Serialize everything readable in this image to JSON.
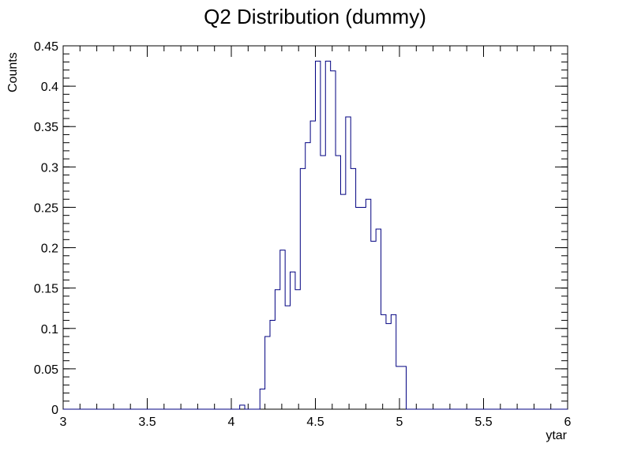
{
  "chart_data": {
    "type": "histogram",
    "title": "Q2 Distribution (dummy)",
    "xlabel": "ytar",
    "ylabel": "Counts",
    "xlim": [
      3,
      6
    ],
    "ylim": [
      0,
      0.45
    ],
    "grid": false,
    "legend": "none",
    "line_color": "#000080",
    "xticks": [
      "3",
      "3.5",
      "4",
      "4.5",
      "5",
      "5.5",
      "6"
    ],
    "xtick_values": [
      3,
      3.5,
      4,
      4.5,
      5,
      5.5,
      6
    ],
    "yticks": [
      "0",
      "0.05",
      "0.1",
      "0.15",
      "0.2",
      "0.25",
      "0.3",
      "0.35",
      "0.4",
      "0.45"
    ],
    "ytick_values": [
      0,
      0.05,
      0.1,
      0.15,
      0.2,
      0.25,
      0.3,
      0.35,
      0.4,
      0.45
    ],
    "bin_edges": [
      3,
      3.03,
      3.06,
      3.09,
      3.12,
      3.15,
      3.18,
      3.21,
      3.24,
      3.27,
      3.3,
      3.33,
      3.36,
      3.39,
      3.42,
      3.45,
      3.48,
      3.51,
      3.54,
      3.57,
      3.6,
      3.63,
      3.66,
      3.69,
      3.72,
      3.75,
      3.78,
      3.81,
      3.84,
      3.87,
      3.9,
      3.93,
      3.96,
      3.99,
      4.02,
      4.05,
      4.08,
      4.11,
      4.14,
      4.17,
      4.2,
      4.23,
      4.26,
      4.29,
      4.32,
      4.35,
      4.38,
      4.41,
      4.44,
      4.47,
      4.5,
      4.53,
      4.56,
      4.59,
      4.62,
      4.65,
      4.68,
      4.71,
      4.74,
      4.77,
      4.8,
      4.83,
      4.86,
      4.89,
      4.92,
      4.95,
      4.98,
      5.01,
      5.04,
      5.07,
      5.1,
      5.13,
      5.16,
      5.19,
      5.22,
      5.25,
      5.28,
      5.31,
      5.34,
      5.37,
      5.4,
      5.43,
      5.46,
      5.49,
      5.52,
      5.55,
      5.58,
      5.61,
      5.64,
      5.67,
      5.7,
      5.73,
      5.76,
      5.79,
      5.82,
      5.85,
      5.88,
      5.91,
      5.94,
      5.97,
      6
    ],
    "values": [
      0,
      0,
      0,
      0,
      0,
      0,
      0,
      0,
      0,
      0,
      0,
      0,
      0,
      0,
      0,
      0,
      0,
      0,
      0,
      0,
      0,
      0,
      0,
      0,
      0,
      0,
      0,
      0,
      0,
      0,
      0,
      0,
      0,
      0,
      0,
      0.005,
      0,
      0,
      0,
      0.025,
      0.09,
      0.11,
      0.148,
      0.197,
      0.128,
      0.17,
      0.148,
      0.298,
      0.33,
      0.357,
      0.431,
      0.314,
      0.431,
      0.419,
      0.314,
      0.266,
      0.362,
      0.298,
      0.25,
      0.25,
      0.26,
      0.208,
      0.223,
      0.117,
      0.106,
      0.117,
      0.053,
      0.053,
      0,
      0,
      0,
      0,
      0,
      0,
      0,
      0,
      0,
      0,
      0,
      0,
      0,
      0,
      0,
      0,
      0,
      0,
      0,
      0,
      0,
      0,
      0,
      0,
      0,
      0,
      0,
      0,
      0,
      0,
      0,
      0
    ]
  }
}
